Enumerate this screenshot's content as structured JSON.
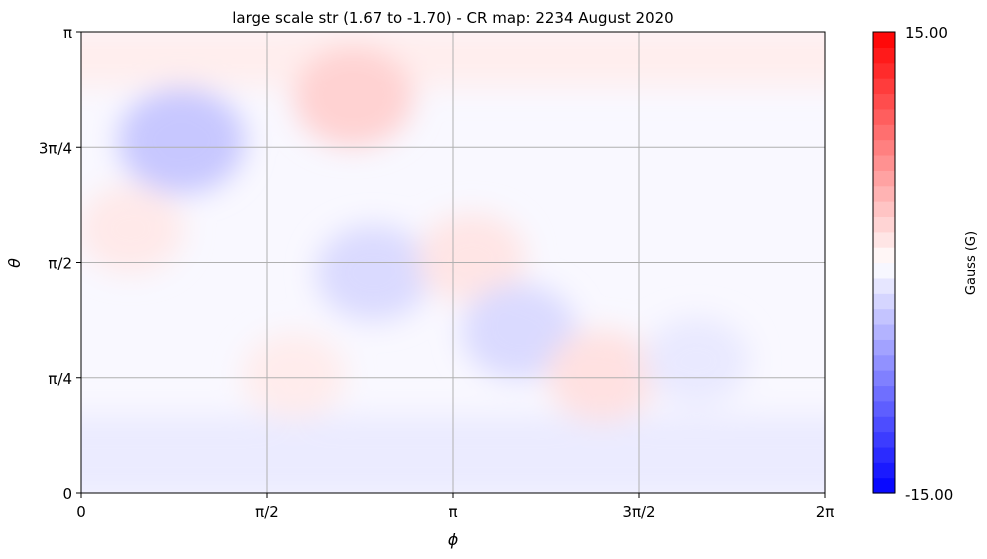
{
  "chart_data": {
    "type": "heatmap",
    "title": "large scale str (1.67 to -1.70) - CR map: 2234 August 2020",
    "xlabel": "ϕ",
    "ylabel": "θ",
    "xlim": [
      0,
      6.2832
    ],
    "ylim": [
      0,
      3.1416
    ],
    "x_ticks": [
      {
        "value": 0,
        "label": "0"
      },
      {
        "value": 1.5708,
        "label": "π/2"
      },
      {
        "value": 3.1416,
        "label": "π"
      },
      {
        "value": 4.7124,
        "label": "3π/2"
      },
      {
        "value": 6.2832,
        "label": "2π"
      }
    ],
    "y_ticks": [
      {
        "value": 0,
        "label": "0"
      },
      {
        "value": 0.7854,
        "label": "π/4"
      },
      {
        "value": 1.5708,
        "label": "π/2"
      },
      {
        "value": 2.3562,
        "label": "3π/4"
      },
      {
        "value": 3.1416,
        "label": "π"
      }
    ],
    "grid": true,
    "value_range": {
      "max": 1.67,
      "min": -1.7
    },
    "features": [
      {
        "phi": 0,
        "theta_from": 2.8,
        "theta_to": 3.1416,
        "value": 1.0,
        "kind": "band"
      },
      {
        "phi": 0,
        "theta_from": 0,
        "theta_to": 0.5,
        "value": -1.2,
        "kind": "band"
      },
      {
        "phi": 0.85,
        "theta": 2.4,
        "value": -1.5
      },
      {
        "phi": 0.42,
        "theta": 1.8,
        "value": 0.6
      },
      {
        "phi": 2.3,
        "theta": 2.7,
        "value": 1.2
      },
      {
        "phi": 2.47,
        "theta": 1.5,
        "value": -1.0
      },
      {
        "phi": 3.3,
        "theta": 1.6,
        "value": 0.7
      },
      {
        "phi": 3.7,
        "theta": 1.1,
        "value": -1.0
      },
      {
        "phi": 4.4,
        "theta": 0.8,
        "value": 0.8
      },
      {
        "phi": 1.8,
        "theta": 0.8,
        "value": 0.5
      },
      {
        "phi": 5.2,
        "theta": 0.9,
        "value": -0.6
      }
    ]
  },
  "colorbar": {
    "label": "Gauss (G)",
    "max_label": "15.00",
    "min_label": "-15.00",
    "max_color": "#ff0000",
    "mid_color": "#ffffff",
    "min_color": "#0000ff",
    "levels": 30
  }
}
